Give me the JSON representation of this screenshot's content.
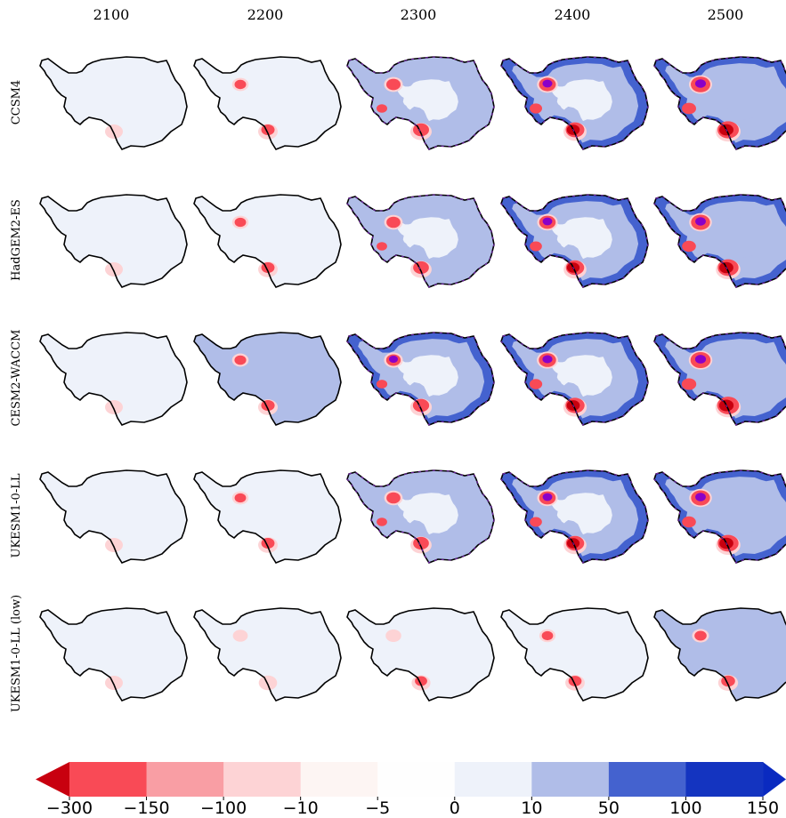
{
  "columns": [
    "2100",
    "2200",
    "2300",
    "2400",
    "2500"
  ],
  "rows": [
    "CCSM4",
    "HadGEM2-ES",
    "CESM2-WACCM",
    "UKESM1-0-LL",
    "UKESM1-0-LL (low)"
  ],
  "colorbar": {
    "ticks": [
      {
        "value": -300,
        "label": "−300"
      },
      {
        "value": -150,
        "label": "−150"
      },
      {
        "value": -100,
        "label": "−100"
      },
      {
        "value": -10,
        "label": "−10"
      },
      {
        "value": -5,
        "label": "−5"
      },
      0,
      10,
      50,
      100,
      150
    ],
    "colors": [
      "#f94a56",
      "#f99ea4",
      "#fdd3d5",
      "#fdf5f3",
      "#fefefe",
      "#eef2fa",
      "#b0bde8",
      "#4462cf",
      "#1434c0"
    ],
    "extend_colors": [
      "#c8000f",
      "#0a2ac0"
    ]
  }
}
